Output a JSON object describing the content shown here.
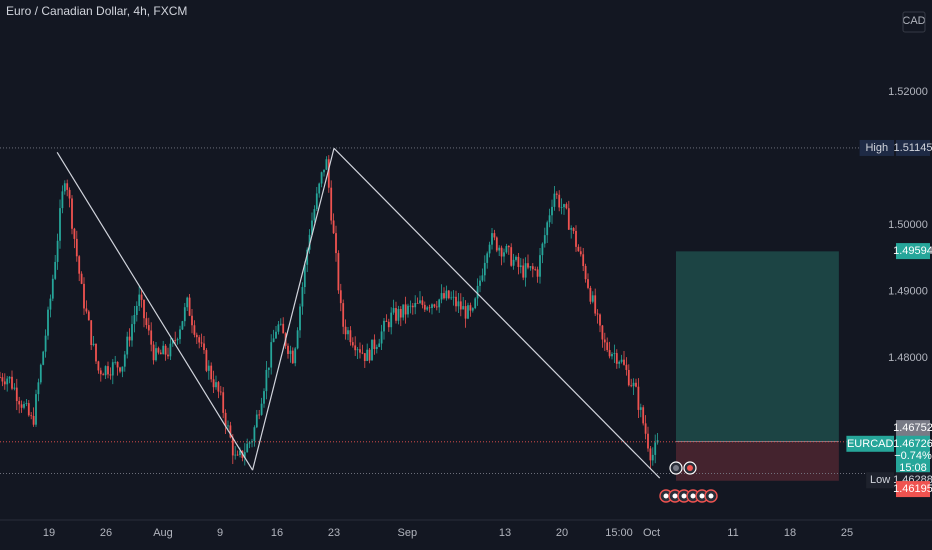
{
  "header": {
    "symbol_title": "Euro / Canadian Dollar, 4h, FXCM"
  },
  "colors": {
    "background": "#131722",
    "up": "#26a69a",
    "down": "#ef5350",
    "text": "#b2b5be",
    "grid": "#1e222d",
    "high_low": "#d1d4dc",
    "last": "#ef5350",
    "profit_zone": "#1f4c4a",
    "loss_zone": "#4a2530"
  },
  "chart_data": {
    "type": "candlestick",
    "symbol": "EURCAD",
    "interval": "4h",
    "currency": "CAD",
    "y_ticks": [
      "1.48000",
      "1.49000",
      "1.50000",
      "1.52000"
    ],
    "ylim": [
      1.4555,
      1.5337
    ],
    "x_ticks": [
      "19",
      "26",
      "Aug",
      "9",
      "16",
      "23",
      "Sep",
      "13",
      "20",
      "15:00",
      "Oct",
      "11",
      "18",
      "25"
    ],
    "x_tick_dates": [
      "Jul 19",
      "Jul 26",
      "Aug 2",
      "Aug 9",
      "Aug 16",
      "Aug 23",
      "Sep 1",
      "Sep 13",
      "Sep 20",
      "Sep 27",
      "Oct 1",
      "Oct 11",
      "Oct 18",
      "Oct 25"
    ],
    "ohlc_path": [
      [
        "Jul 14",
        1.477
      ],
      [
        "Jul 17",
        1.47
      ],
      [
        "Jul 19",
        1.487
      ],
      [
        "Jul 21",
        1.508
      ],
      [
        "Jul 23",
        1.49
      ],
      [
        "Jul 25",
        1.478
      ],
      [
        "Jul 28",
        1.479
      ],
      [
        "Jul 30",
        1.489
      ],
      [
        "Aug 1",
        1.48
      ],
      [
        "Aug 3",
        1.481
      ],
      [
        "Aug 5",
        1.488
      ],
      [
        "Aug 7",
        1.48
      ],
      [
        "Aug 9",
        1.474
      ],
      [
        "Aug 11",
        1.464
      ],
      [
        "Aug 13",
        1.468
      ],
      [
        "Aug 16",
        1.485
      ],
      [
        "Aug 18",
        1.48
      ],
      [
        "Aug 20",
        1.499
      ],
      [
        "Aug 22",
        1.51
      ],
      [
        "Aug 24",
        1.485
      ],
      [
        "Aug 27",
        1.48
      ],
      [
        "Aug 30",
        1.486
      ],
      [
        "Sep 3",
        1.488
      ],
      [
        "Sep 6",
        1.489
      ],
      [
        "Sep 9",
        1.486
      ],
      [
        "Sep 11",
        1.498
      ],
      [
        "Sep 13",
        1.496
      ],
      [
        "Sep 15",
        1.493
      ],
      [
        "Sep 17",
        1.493
      ],
      [
        "Sep 19",
        1.505
      ],
      [
        "Sep 21",
        1.5
      ],
      [
        "Sep 23",
        1.492
      ],
      [
        "Sep 25",
        1.482
      ],
      [
        "Sep 27",
        1.48
      ],
      [
        "Sep 29",
        1.475
      ],
      [
        "Oct 1",
        1.465
      ],
      [
        "Oct 2",
        1.4673
      ]
    ],
    "trend_lines": [
      {
        "points": [
          [
            "Jul 20",
            1.5108
          ],
          [
            "Aug 13",
            1.463
          ]
        ]
      },
      {
        "points": [
          [
            "Aug 13",
            1.463
          ],
          [
            "Aug 23",
            1.5114
          ]
        ]
      },
      {
        "points": [
          [
            "Aug 23",
            1.5114
          ],
          [
            "Oct 2",
            1.4618
          ]
        ]
      }
    ],
    "position": {
      "type": "long",
      "start": "Oct 4",
      "end": "Oct 24",
      "entry": 1.4673,
      "target": 1.4959,
      "stop": 1.4614
    },
    "price_labels": {
      "high": {
        "label": "High",
        "value": "1.51145"
      },
      "target": {
        "value": "1.49594"
      },
      "entry": {
        "value": "1.46752"
      },
      "symbol": {
        "label": "EURCAD",
        "value": "1.46726",
        "change": "−0.74%",
        "countdown": "15:08"
      },
      "low": {
        "label": "Low",
        "value": "1.46288"
      },
      "stop": {
        "value": "1.46195"
      }
    },
    "currency_label": "CAD",
    "grid": false,
    "legend": "none"
  }
}
